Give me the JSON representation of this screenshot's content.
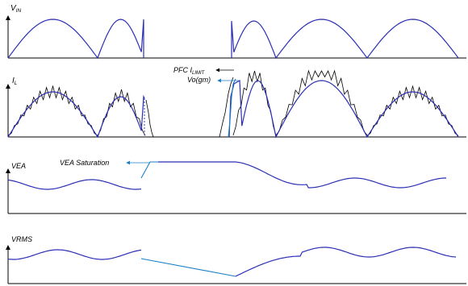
{
  "panels": {
    "vin": {
      "label": "V",
      "sub": "IN"
    },
    "il": {
      "label": "I",
      "sub": "L"
    },
    "vea": {
      "label": "VEA"
    },
    "vrms": {
      "label": "VRMS"
    }
  },
  "annotations": {
    "pfc_limit": {
      "text": "PFC I",
      "sub": "LIMIT"
    },
    "vo_gm": {
      "text": "Vo(gm)"
    },
    "vea_saturation": {
      "text": "VEA Saturation"
    }
  },
  "colors": {
    "waveform": "#2b2fb3",
    "ripple": "#000000",
    "arrow": "#1a7ec4"
  }
}
